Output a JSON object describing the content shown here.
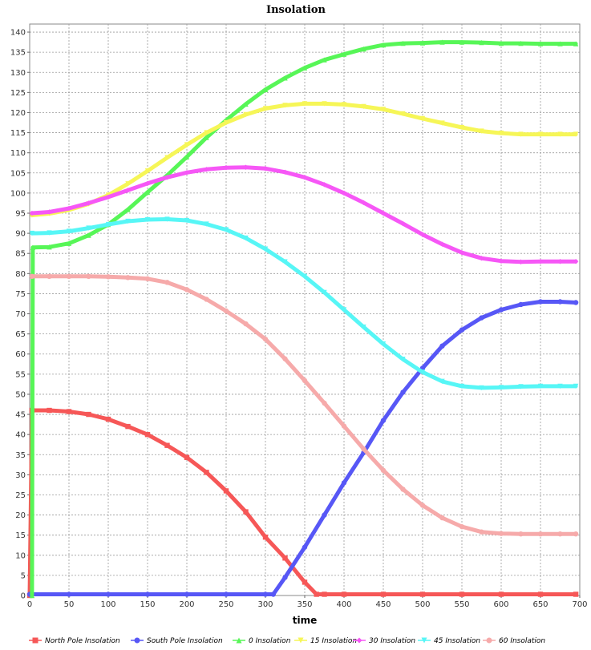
{
  "chart_data": {
    "type": "line",
    "title": "Insolation",
    "xlabel": "time",
    "ylabel": "",
    "xlim": [
      0,
      700
    ],
    "ylim": [
      0,
      142
    ],
    "xticks": [
      0,
      50,
      100,
      150,
      200,
      250,
      300,
      350,
      400,
      450,
      500,
      550,
      600,
      650,
      700
    ],
    "yticks": [
      0,
      5,
      10,
      15,
      20,
      25,
      30,
      35,
      40,
      45,
      50,
      55,
      60,
      65,
      70,
      75,
      80,
      85,
      90,
      95,
      100,
      105,
      110,
      115,
      120,
      125,
      130,
      135,
      140
    ],
    "grid": true,
    "legend_position": "bottom",
    "x": [
      0,
      25,
      50,
      75,
      100,
      125,
      150,
      175,
      200,
      225,
      250,
      275,
      300,
      325,
      350,
      375,
      400,
      425,
      450,
      475,
      500,
      525,
      550,
      575,
      600,
      625,
      650,
      675,
      695
    ],
    "series": [
      {
        "name": "North Pole Insolation",
        "color": "#f65757",
        "marker": "square",
        "points": [
          [
            0,
            0
          ],
          [
            3,
            46
          ],
          [
            25,
            46
          ],
          [
            50,
            45.7
          ],
          [
            75,
            45
          ],
          [
            100,
            43.8
          ],
          [
            125,
            42
          ],
          [
            150,
            40
          ],
          [
            175,
            37.3
          ],
          [
            200,
            34.3
          ],
          [
            225,
            30.6
          ],
          [
            250,
            26
          ],
          [
            275,
            20.8
          ],
          [
            300,
            14.5
          ],
          [
            325,
            9.3
          ],
          [
            350,
            3.3
          ],
          [
            365,
            0.3
          ],
          [
            375,
            0.3
          ],
          [
            400,
            0.3
          ],
          [
            450,
            0.3
          ],
          [
            500,
            0.3
          ],
          [
            550,
            0.3
          ],
          [
            600,
            0.3
          ],
          [
            650,
            0.3
          ],
          [
            695,
            0.3
          ]
        ]
      },
      {
        "name": "South Pole Insolation",
        "color": "#5757f6",
        "marker": "circle",
        "points": [
          [
            0,
            0.3
          ],
          [
            50,
            0.3
          ],
          [
            100,
            0.3
          ],
          [
            150,
            0.3
          ],
          [
            200,
            0.3
          ],
          [
            250,
            0.3
          ],
          [
            300,
            0.3
          ],
          [
            310,
            0.3
          ],
          [
            325,
            4.5
          ],
          [
            350,
            12
          ],
          [
            375,
            20
          ],
          [
            400,
            28
          ],
          [
            425,
            35.5
          ],
          [
            450,
            43.5
          ],
          [
            475,
            50.5
          ],
          [
            500,
            56.5
          ],
          [
            525,
            62
          ],
          [
            550,
            66
          ],
          [
            575,
            69
          ],
          [
            600,
            71
          ],
          [
            625,
            72.3
          ],
          [
            650,
            73
          ],
          [
            675,
            73
          ],
          [
            695,
            72.8
          ]
        ]
      },
      {
        "name": "0 Insolation",
        "color": "#57f657",
        "marker": "triangle-up",
        "points": [
          [
            3,
            0
          ],
          [
            4,
            86.5
          ],
          [
            25,
            86.6
          ],
          [
            50,
            87.5
          ],
          [
            75,
            89.5
          ],
          [
            100,
            92.2
          ],
          [
            125,
            95.9
          ],
          [
            150,
            100.2
          ],
          [
            175,
            104.4
          ],
          [
            200,
            109
          ],
          [
            225,
            113.8
          ],
          [
            250,
            118.1
          ],
          [
            275,
            122.1
          ],
          [
            300,
            125.7
          ],
          [
            325,
            128.6
          ],
          [
            350,
            131.1
          ],
          [
            375,
            133.1
          ],
          [
            400,
            134.5
          ],
          [
            425,
            135.8
          ],
          [
            450,
            136.8
          ],
          [
            475,
            137.2
          ],
          [
            500,
            137.3
          ],
          [
            525,
            137.5
          ],
          [
            550,
            137.5
          ],
          [
            575,
            137.4
          ],
          [
            600,
            137.2
          ],
          [
            625,
            137.2
          ],
          [
            650,
            137.1
          ],
          [
            675,
            137.1
          ],
          [
            695,
            137.1
          ]
        ]
      },
      {
        "name": "15 Insolation",
        "color": "#f6f657",
        "marker": "triangle-down",
        "points": [
          [
            3,
            94.5
          ],
          [
            25,
            94.9
          ],
          [
            50,
            95.8
          ],
          [
            75,
            97.3
          ],
          [
            100,
            99.5
          ],
          [
            125,
            102.3
          ],
          [
            150,
            105.5
          ],
          [
            175,
            108.8
          ],
          [
            200,
            112
          ],
          [
            225,
            115
          ],
          [
            250,
            117.5
          ],
          [
            275,
            119.5
          ],
          [
            300,
            121
          ],
          [
            325,
            121.8
          ],
          [
            350,
            122.2
          ],
          [
            375,
            122.2
          ],
          [
            400,
            122
          ],
          [
            425,
            121.5
          ],
          [
            450,
            120.8
          ],
          [
            475,
            119.7
          ],
          [
            500,
            118.5
          ],
          [
            525,
            117.4
          ],
          [
            550,
            116.3
          ],
          [
            575,
            115.4
          ],
          [
            600,
            114.9
          ],
          [
            625,
            114.6
          ],
          [
            650,
            114.6
          ],
          [
            675,
            114.6
          ],
          [
            695,
            114.6
          ]
        ]
      },
      {
        "name": "30 Insolation",
        "color": "#f657f6",
        "marker": "diamond",
        "points": [
          [
            3,
            95
          ],
          [
            25,
            95.3
          ],
          [
            50,
            96.2
          ],
          [
            75,
            97.5
          ],
          [
            100,
            99
          ],
          [
            125,
            100.7
          ],
          [
            150,
            102.4
          ],
          [
            175,
            103.9
          ],
          [
            200,
            105.1
          ],
          [
            225,
            105.9
          ],
          [
            250,
            106.3
          ],
          [
            275,
            106.4
          ],
          [
            300,
            106.1
          ],
          [
            325,
            105.2
          ],
          [
            350,
            103.9
          ],
          [
            375,
            102.1
          ],
          [
            400,
            100
          ],
          [
            425,
            97.6
          ],
          [
            450,
            95
          ],
          [
            475,
            92.4
          ],
          [
            500,
            89.7
          ],
          [
            525,
            87.3
          ],
          [
            550,
            85.2
          ],
          [
            575,
            83.8
          ],
          [
            600,
            83.1
          ],
          [
            625,
            82.9
          ],
          [
            650,
            83
          ],
          [
            675,
            83
          ],
          [
            695,
            83
          ]
        ]
      },
      {
        "name": "45 Insolation",
        "color": "#57f6f6",
        "marker": "triangle-down",
        "points": [
          [
            3,
            90
          ],
          [
            25,
            90.1
          ],
          [
            50,
            90.5
          ],
          [
            75,
            91.3
          ],
          [
            100,
            92.2
          ],
          [
            125,
            93
          ],
          [
            150,
            93.4
          ],
          [
            175,
            93.5
          ],
          [
            200,
            93.2
          ],
          [
            225,
            92.3
          ],
          [
            250,
            90.9
          ],
          [
            275,
            88.8
          ],
          [
            300,
            86.1
          ],
          [
            325,
            82.9
          ],
          [
            350,
            79.3
          ],
          [
            375,
            75.3
          ],
          [
            400,
            71
          ],
          [
            425,
            66.7
          ],
          [
            450,
            62.5
          ],
          [
            475,
            58.7
          ],
          [
            500,
            55.5
          ],
          [
            525,
            53.2
          ],
          [
            550,
            52
          ],
          [
            575,
            51.6
          ],
          [
            600,
            51.7
          ],
          [
            625,
            51.9
          ],
          [
            650,
            52
          ],
          [
            675,
            52
          ],
          [
            695,
            52
          ]
        ]
      },
      {
        "name": "60 Insolation",
        "color": "#f6aaaa",
        "marker": "circle",
        "points": [
          [
            3,
            79.3
          ],
          [
            25,
            79.3
          ],
          [
            50,
            79.3
          ],
          [
            75,
            79.3
          ],
          [
            100,
            79.2
          ],
          [
            125,
            79
          ],
          [
            150,
            78.7
          ],
          [
            175,
            77.8
          ],
          [
            200,
            76
          ],
          [
            225,
            73.6
          ],
          [
            250,
            70.7
          ],
          [
            275,
            67.5
          ],
          [
            300,
            63.7
          ],
          [
            325,
            58.8
          ],
          [
            350,
            53.4
          ],
          [
            375,
            47.8
          ],
          [
            400,
            42.1
          ],
          [
            425,
            36.4
          ],
          [
            450,
            31.1
          ],
          [
            475,
            26.4
          ],
          [
            500,
            22.4
          ],
          [
            525,
            19.3
          ],
          [
            550,
            17.1
          ],
          [
            575,
            15.8
          ],
          [
            600,
            15.4
          ],
          [
            625,
            15.3
          ],
          [
            650,
            15.3
          ],
          [
            675,
            15.3
          ],
          [
            695,
            15.3
          ]
        ]
      }
    ]
  }
}
